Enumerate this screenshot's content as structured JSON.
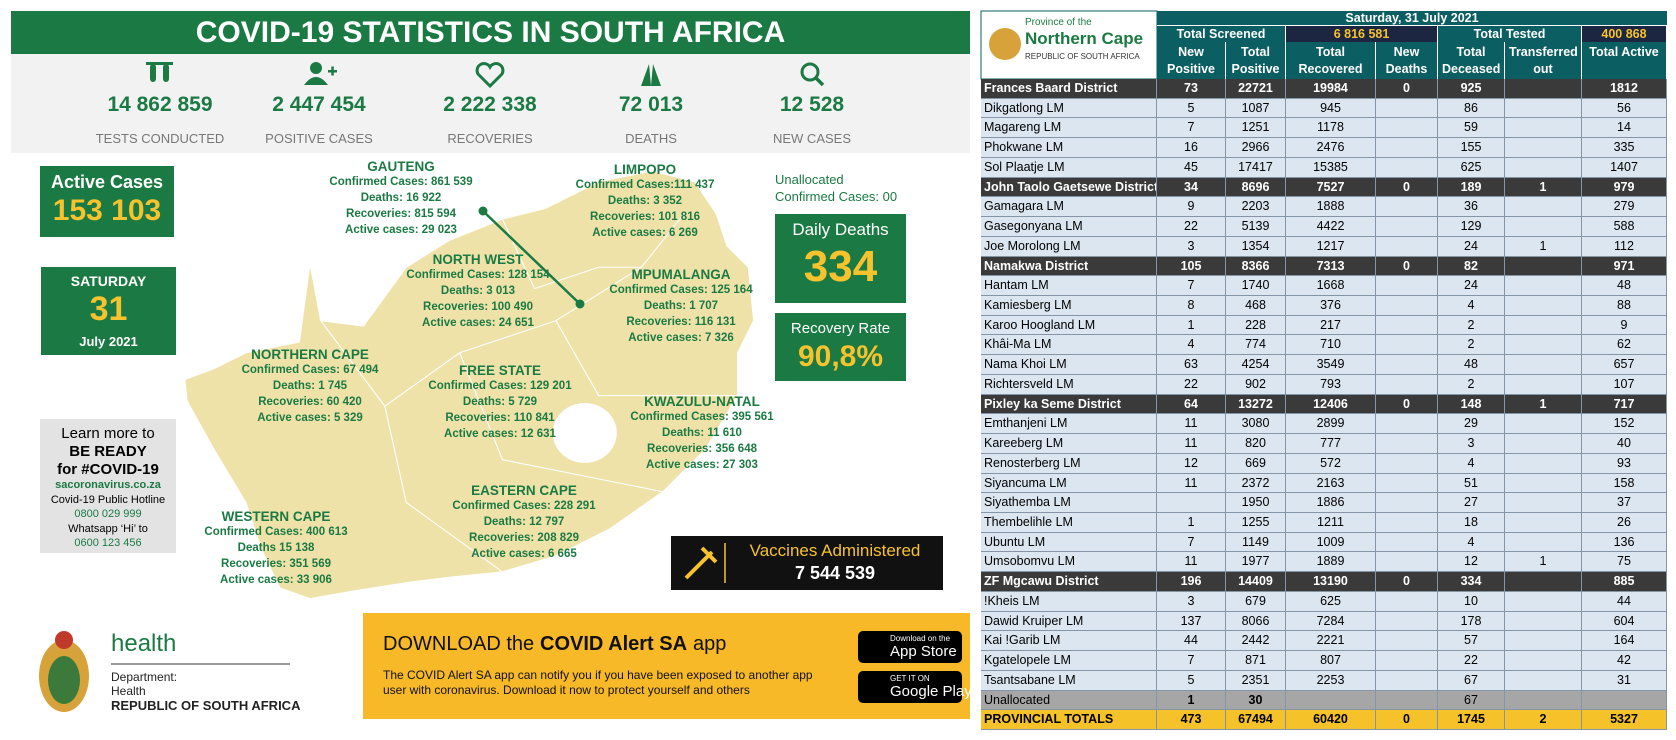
{
  "left": {
    "title": "COVID-19 STATISTICS IN SOUTH AFRICA",
    "stats": [
      {
        "value": "14 862 859",
        "label": "TESTS CONDUCTED"
      },
      {
        "value": "2 447 454",
        "label": "POSITIVE CASES"
      },
      {
        "value": "2 222 338",
        "label": "RECOVERIES"
      },
      {
        "value": "72 013",
        "label": "DEATHS"
      },
      {
        "value": "12 528",
        "label": "NEW CASES"
      }
    ],
    "active_cases": {
      "label": "Active Cases",
      "value": "153 103"
    },
    "date": {
      "weekday": "SATURDAY",
      "day": "31",
      "month_year": "July 2021"
    },
    "learn_more": [
      "Learn more to",
      "BE READY",
      "for #COVID-19",
      "sacoronavirus.co.za",
      "Covid-19 Public Hotline",
      "0800 029 999",
      "Whatsapp ‘Hi’ to",
      "0600 123 456"
    ],
    "provinces": [
      {
        "name": "GAUTENG",
        "lines": [
          "Confirmed Cases: 861 539",
          "Deaths: 16 922",
          "Recoveries: 815 594",
          "Active cases: 29 023"
        ]
      },
      {
        "name": "LIMPOPO",
        "lines": [
          "Confirmed Cases:111 437",
          "Deaths: 3 352",
          "Recoveries: 101 816",
          "Active cases: 6 269"
        ]
      },
      {
        "name": "NORTH WEST",
        "lines": [
          "Confirmed Cases: 128 154",
          "Deaths: 3 013",
          "Recoveries: 100 490",
          "Active cases: 24 651"
        ]
      },
      {
        "name": "MPUMALANGA",
        "lines": [
          "Confirmed Cases: 125 164",
          "Deaths: 1 707",
          "Recoveries: 116 131",
          "Active cases: 7 326"
        ]
      },
      {
        "name": "NORTHERN CAPE",
        "lines": [
          "Confirmed Cases: 67 494",
          "Deaths: 1 745",
          "Recoveries: 60 420",
          "Active cases: 5 329"
        ]
      },
      {
        "name": "FREE STATE",
        "lines": [
          "Confirmed Cases: 129 201",
          "Deaths: 5 729",
          "Recoveries: 110 841",
          "Active cases: 12 631"
        ]
      },
      {
        "name": "KWAZULU-NATAL",
        "lines": [
          "Confirmed Cases: 395 561",
          "Deaths: 11 610",
          "Recoveries: 356 648",
          "Active cases: 27 303"
        ]
      },
      {
        "name": "EASTERN CAPE",
        "lines": [
          "Confirmed Cases: 228 291",
          "Deaths: 12 797",
          "Recoveries: 208 829",
          "Active cases: 6 665"
        ]
      },
      {
        "name": "WESTERN CAPE",
        "lines": [
          "Confirmed Cases: 400 613",
          "Deaths 15 138",
          "Recoveries: 351 569",
          "Active cases: 33 906"
        ]
      }
    ],
    "unallocated": [
      "Unallocated",
      "Confirmed Cases: 00"
    ],
    "daily_deaths": {
      "label": "Daily Deaths",
      "value": "334"
    },
    "recovery_rate": {
      "label": "Recovery Rate",
      "value": "90,8%"
    },
    "vaccines": {
      "label": "Vaccines Administered",
      "value": "7 544 539"
    },
    "department": {
      "word": "health",
      "lines": [
        "Department:",
        "Health",
        "REPUBLIC OF SOUTH AFRICA"
      ]
    },
    "app_banner": {
      "prefix": "DOWNLOAD the",
      "name": "COVID Alert SA",
      "suffix": "app",
      "text": "The COVID Alert SA app can notify you if you have been exposed to another app user with coronavirus. Download it now to protect yourself and others",
      "app_store": [
        "Download on the",
        "App Store"
      ],
      "google_play": [
        "GET IT ON",
        "Google Play"
      ]
    }
  },
  "table": {
    "logo": [
      "Province of the",
      "Northern Cape",
      "REPUBLIC OF SOUTH AFRICA"
    ],
    "date": "Saturday, 31 July 2021",
    "summary": [
      "Total Screened",
      "6 816 581",
      "Total Tested",
      "400 868"
    ],
    "columns": [
      "New Positive",
      "Total Positive",
      "Total Recovered",
      "New Deaths",
      "Total Deceased",
      "Transferred out",
      "Total Active"
    ],
    "districts": [
      {
        "name": "Frances Baard District",
        "values": [
          73,
          22721,
          19984,
          0,
          925,
          null,
          1812
        ],
        "municipalities": [
          {
            "name": "Dikgatlong LM",
            "values": [
              5,
              1087,
              945,
              null,
              86,
              null,
              56
            ]
          },
          {
            "name": "Magareng LM",
            "values": [
              7,
              1251,
              1178,
              null,
              59,
              null,
              14
            ]
          },
          {
            "name": "Phokwane LM",
            "values": [
              16,
              2966,
              2476,
              null,
              155,
              null,
              335
            ]
          },
          {
            "name": "Sol Plaatje LM",
            "values": [
              45,
              17417,
              15385,
              null,
              625,
              null,
              1407
            ]
          }
        ]
      },
      {
        "name": "John Taolo Gaetsewe District",
        "values": [
          34,
          8696,
          7527,
          0,
          189,
          1,
          979
        ],
        "municipalities": [
          {
            "name": "Gamagara LM",
            "values": [
              9,
              2203,
              1888,
              null,
              36,
              null,
              279
            ]
          },
          {
            "name": "Gasegonyana LM",
            "values": [
              22,
              5139,
              4422,
              null,
              129,
              null,
              588
            ]
          },
          {
            "name": "Joe Morolong LM",
            "values": [
              3,
              1354,
              1217,
              null,
              24,
              1,
              112
            ]
          }
        ]
      },
      {
        "name": "Namakwa District",
        "values": [
          105,
          8366,
          7313,
          0,
          82,
          null,
          971
        ],
        "municipalities": [
          {
            "name": "Hantam LM",
            "values": [
              7,
              1740,
              1668,
              null,
              24,
              null,
              48
            ]
          },
          {
            "name": "Kamiesberg LM",
            "values": [
              8,
              468,
              376,
              null,
              4,
              null,
              88
            ]
          },
          {
            "name": "Karoo Hoogland LM",
            "values": [
              1,
              228,
              217,
              null,
              2,
              null,
              9
            ]
          },
          {
            "name": "Khâi-Ma LM",
            "values": [
              4,
              774,
              710,
              null,
              2,
              null,
              62
            ]
          },
          {
            "name": "Nama Khoi LM",
            "values": [
              63,
              4254,
              3549,
              null,
              48,
              null,
              657
            ]
          },
          {
            "name": "Richtersveld LM",
            "values": [
              22,
              902,
              793,
              null,
              2,
              null,
              107
            ]
          }
        ]
      },
      {
        "name": "Pixley ka Seme District",
        "values": [
          64,
          13272,
          12406,
          0,
          148,
          1,
          717
        ],
        "municipalities": [
          {
            "name": "Emthanjeni LM",
            "values": [
              11,
              3080,
              2899,
              null,
              29,
              null,
              152
            ]
          },
          {
            "name": "Kareeberg LM",
            "values": [
              11,
              820,
              777,
              null,
              3,
              null,
              40
            ]
          },
          {
            "name": "Renosterberg LM",
            "values": [
              12,
              669,
              572,
              null,
              4,
              null,
              93
            ]
          },
          {
            "name": "Siyancuma LM",
            "values": [
              11,
              2372,
              2163,
              null,
              51,
              null,
              158
            ]
          },
          {
            "name": "Siyathemba LM",
            "values": [
              null,
              1950,
              1886,
              null,
              27,
              null,
              37
            ]
          },
          {
            "name": "Thembelihle LM",
            "values": [
              1,
              1255,
              1211,
              null,
              18,
              null,
              26
            ]
          },
          {
            "name": "Ubuntu LM",
            "values": [
              7,
              1149,
              1009,
              null,
              4,
              null,
              136
            ]
          },
          {
            "name": "Umsobomvu LM",
            "values": [
              11,
              1977,
              1889,
              null,
              12,
              1,
              75
            ]
          }
        ]
      },
      {
        "name": "ZF Mgcawu District",
        "values": [
          196,
          14409,
          13190,
          0,
          334,
          null,
          885
        ],
        "municipalities": [
          {
            "name": "!Kheis LM",
            "values": [
              3,
              679,
              625,
              null,
              10,
              null,
              44
            ]
          },
          {
            "name": "Dawid Kruiper LM",
            "values": [
              137,
              8066,
              7284,
              null,
              178,
              null,
              604
            ]
          },
          {
            "name": "Kai !Garib LM",
            "values": [
              44,
              2442,
              2221,
              null,
              57,
              null,
              164
            ]
          },
          {
            "name": "Kgatelopele LM",
            "values": [
              7,
              871,
              807,
              null,
              22,
              null,
              42
            ]
          },
          {
            "name": "Tsantsabane LM",
            "values": [
              5,
              2351,
              2253,
              null,
              67,
              null,
              31
            ]
          }
        ]
      }
    ],
    "unallocated": {
      "name": "Unallocated",
      "values": [
        1,
        30,
        null,
        null,
        67,
        null,
        null
      ]
    },
    "totals": {
      "name": "PROVINCIAL TOTALS",
      "values": [
        473,
        67494,
        60420,
        0,
        1745,
        2,
        5327
      ]
    }
  }
}
